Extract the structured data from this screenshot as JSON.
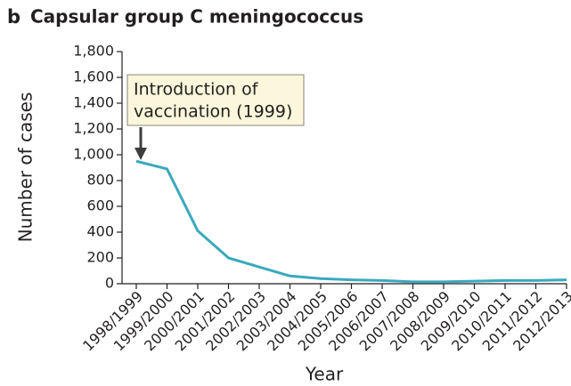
{
  "chart_data": {
    "type": "line",
    "panel_label": "b",
    "title": "Capsular group C meningococcus",
    "x_label": "Year",
    "y_label": "Number of cases",
    "annotation": [
      "Introduction of",
      "vaccination (1999)"
    ],
    "categories": [
      "1998/1999",
      "1999/2000",
      "2000/2001",
      "2001/2002",
      "2002/2003",
      "2003/2004",
      "2004/2005",
      "2005/2006",
      "2006/2007",
      "2007/2008",
      "2008/2009",
      "2009/2010",
      "2010/2011",
      "2011/2012",
      "2012/2013"
    ],
    "series": [
      {
        "name": "Capsular group C meningococcus",
        "color": "#3aa9be",
        "values": [
          950,
          890,
          410,
          200,
          130,
          60,
          40,
          30,
          25,
          15,
          15,
          20,
          25,
          25,
          30
        ]
      }
    ],
    "ylim": [
      0,
      1800
    ],
    "yticks": [
      0,
      200,
      400,
      600,
      800,
      {
        "value": 1000,
        "label": "1,000"
      },
      {
        "value": 1200,
        "label": "1,200"
      },
      {
        "value": 1400,
        "label": "1,400"
      },
      {
        "value": 1600,
        "label": "1,600"
      },
      {
        "value": 1800,
        "label": "1,800"
      }
    ],
    "grid": false
  }
}
